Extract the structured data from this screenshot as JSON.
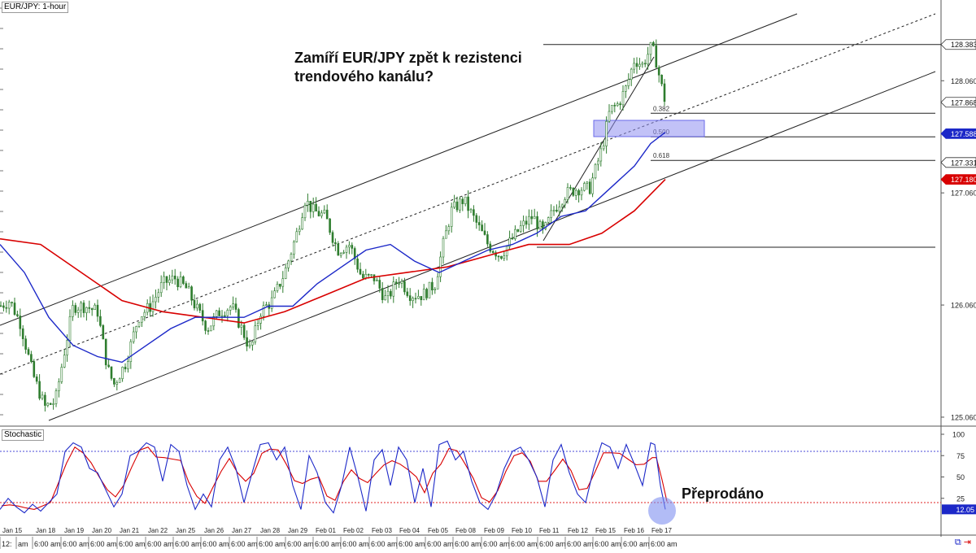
{
  "chart_info": {
    "symbol_label": "EUR/JPY: 1-hour",
    "headline": "Zamíří EUR/JPY zpět k rezistenci trendového kanálu?",
    "annotation": "Přeprodáno"
  },
  "colors": {
    "candle": "#2f7d2f",
    "ma_fast": "#1c28c8",
    "ma_slow": "#d80000",
    "channel": "#222222",
    "zone": "#8f8ff0",
    "stoch_k": "#1c28c8",
    "stoch_d": "#d80000",
    "overbought": "#4848d8",
    "oversold": "#e02020",
    "tag_blue": "#1c28c8",
    "tag_red": "#d80000",
    "circle": "#7f8ff0"
  },
  "chart_data": [
    {
      "type": "candlestick",
      "title": "EUR/JPY: 1-hour",
      "ylim": [
        124.98,
        128.78
      ],
      "y_ticks": [
        "128.383",
        "128.060",
        "127.868",
        "127.588",
        "127.331",
        "127.180",
        "127.060",
        "126.060",
        "125.060"
      ],
      "y_tick_values": [
        128.383,
        128.06,
        127.868,
        127.588,
        127.331,
        127.18,
        127.06,
        126.06,
        125.06
      ],
      "price_tags": [
        {
          "label": "128.383",
          "value": 128.383,
          "style": "outline"
        },
        {
          "label": "127.868",
          "value": 127.868,
          "style": "outline"
        },
        {
          "label": "127.588",
          "value": 127.588,
          "style": "blue"
        },
        {
          "label": "127.331",
          "value": 127.331,
          "style": "outline"
        },
        {
          "label": "127.180",
          "value": 127.18,
          "style": "red"
        }
      ],
      "x_date_labels": [
        "Jan 15",
        "Jan 18",
        "Jan 19",
        "Jan 20",
        "Jan 21",
        "Jan 22",
        "Jan 25",
        "Jan 26",
        "Jan 27",
        "Jan 28",
        "Jan 29",
        "Feb 01",
        "Feb 02",
        "Feb 03",
        "Feb 04",
        "Feb 05",
        "Feb 08",
        "Feb 09",
        "Feb 10",
        "Feb 11",
        "Feb 12",
        "Feb 15",
        "Feb 16",
        "Feb 17"
      ],
      "x_time_labels": [
        "12:",
        "am",
        "6:00 am",
        "6:00 am",
        "6:00 am",
        "6:00 am",
        "6:00 am",
        "6:00 am",
        "6:00 am",
        "6:00 am",
        "6:00 am",
        "6:00 am",
        "6:00 am",
        "6:00 am",
        "6:00 am",
        "6:00 am",
        "6:00 am",
        "6:00 am",
        "6:00 am",
        "6:00 am",
        "6:00 am",
        "6:00 am",
        "6:00 am",
        "6:00 am",
        "6:00 am"
      ],
      "close_path": [
        [
          0,
          126.05
        ],
        [
          12,
          126.1
        ],
        [
          25,
          125.9
        ],
        [
          40,
          125.45
        ],
        [
          55,
          125.15
        ],
        [
          68,
          125.2
        ],
        [
          78,
          125.6
        ],
        [
          90,
          126.05
        ],
        [
          105,
          126.05
        ],
        [
          120,
          126.0
        ],
        [
          132,
          125.5
        ],
        [
          140,
          125.35
        ],
        [
          155,
          125.55
        ],
        [
          170,
          125.95
        ],
        [
          185,
          126.05
        ],
        [
          200,
          126.25
        ],
        [
          215,
          126.3
        ],
        [
          230,
          126.2
        ],
        [
          240,
          126.05
        ],
        [
          255,
          125.85
        ],
        [
          270,
          126.0
        ],
        [
          285,
          126.05
        ],
        [
          300,
          125.8
        ],
        [
          308,
          125.65
        ],
        [
          320,
          126.0
        ],
        [
          335,
          126.1
        ],
        [
          350,
          126.35
        ],
        [
          365,
          126.7
        ],
        [
          375,
          127.0
        ],
        [
          385,
          126.9
        ],
        [
          400,
          126.85
        ],
        [
          415,
          126.55
        ],
        [
          430,
          126.6
        ],
        [
          445,
          126.3
        ],
        [
          460,
          126.3
        ],
        [
          475,
          126.1
        ],
        [
          490,
          126.3
        ],
        [
          505,
          126.15
        ],
        [
          520,
          126.15
        ],
        [
          535,
          126.25
        ],
        [
          545,
          126.6
        ],
        [
          555,
          126.9
        ],
        [
          570,
          127.0
        ],
        [
          585,
          126.8
        ],
        [
          600,
          126.6
        ],
        [
          615,
          126.5
        ],
        [
          625,
          126.6
        ],
        [
          640,
          126.75
        ],
        [
          655,
          126.85
        ],
        [
          668,
          126.7
        ],
        [
          680,
          126.9
        ],
        [
          695,
          127.05
        ],
        [
          710,
          127.1
        ],
        [
          725,
          127.1
        ],
        [
          740,
          127.45
        ],
        [
          750,
          127.8
        ],
        [
          760,
          127.85
        ],
        [
          770,
          128.0
        ],
        [
          780,
          128.25
        ],
        [
          790,
          128.2
        ],
        [
          800,
          128.35
        ],
        [
          805,
          128.3
        ],
        [
          812,
          128.05
        ],
        [
          818,
          127.87
        ]
      ],
      "ma_fast": [
        [
          0,
          126.6
        ],
        [
          30,
          126.35
        ],
        [
          60,
          125.95
        ],
        [
          90,
          125.7
        ],
        [
          120,
          125.6
        ],
        [
          150,
          125.55
        ],
        [
          180,
          125.7
        ],
        [
          210,
          125.85
        ],
        [
          240,
          125.95
        ],
        [
          270,
          125.95
        ],
        [
          300,
          125.95
        ],
        [
          330,
          126.05
        ],
        [
          360,
          126.05
        ],
        [
          390,
          126.25
        ],
        [
          420,
          126.4
        ],
        [
          450,
          126.55
        ],
        [
          480,
          126.6
        ],
        [
          510,
          126.45
        ],
        [
          540,
          126.35
        ],
        [
          570,
          126.45
        ],
        [
          600,
          126.55
        ],
        [
          630,
          126.6
        ],
        [
          660,
          126.7
        ],
        [
          690,
          126.85
        ],
        [
          720,
          126.9
        ],
        [
          750,
          127.1
        ],
        [
          780,
          127.3
        ],
        [
          800,
          127.5
        ],
        [
          818,
          127.6
        ]
      ],
      "ma_slow": [
        [
          0,
          126.65
        ],
        [
          50,
          126.6
        ],
        [
          100,
          126.35
        ],
        [
          150,
          126.1
        ],
        [
          200,
          126.0
        ],
        [
          250,
          125.95
        ],
        [
          300,
          125.9
        ],
        [
          350,
          126.0
        ],
        [
          400,
          126.15
        ],
        [
          450,
          126.3
        ],
        [
          500,
          126.35
        ],
        [
          550,
          126.4
        ],
        [
          600,
          126.5
        ],
        [
          650,
          126.6
        ],
        [
          700,
          126.6
        ],
        [
          740,
          126.7
        ],
        [
          780,
          126.9
        ],
        [
          818,
          127.18
        ]
      ],
      "fib_levels": [
        {
          "label": "0.382",
          "value": 127.77
        },
        {
          "label": "0.500",
          "value": 127.56
        },
        {
          "label": "0.618",
          "value": 127.35
        }
      ]
    },
    {
      "type": "line",
      "title": "Stochastic",
      "ylim": [
        0,
        100
      ],
      "y_ticks": [
        "100",
        "75",
        "50",
        "25"
      ],
      "y_tick_values": [
        100,
        75,
        50,
        25
      ],
      "overbought": 80,
      "oversold": 20,
      "last_value_label": "12.05",
      "last_value": 12.05,
      "series_k": [
        [
          0,
          12
        ],
        [
          10,
          25
        ],
        [
          20,
          15
        ],
        [
          30,
          8
        ],
        [
          40,
          18
        ],
        [
          50,
          10
        ],
        [
          60,
          20
        ],
        [
          70,
          30
        ],
        [
          80,
          80
        ],
        [
          90,
          90
        ],
        [
          100,
          85
        ],
        [
          110,
          60
        ],
        [
          120,
          55
        ],
        [
          130,
          35
        ],
        [
          140,
          15
        ],
        [
          150,
          30
        ],
        [
          160,
          75
        ],
        [
          170,
          80
        ],
        [
          180,
          90
        ],
        [
          190,
          85
        ],
        [
          200,
          45
        ],
        [
          210,
          88
        ],
        [
          220,
          80
        ],
        [
          230,
          40
        ],
        [
          240,
          12
        ],
        [
          250,
          30
        ],
        [
          260,
          15
        ],
        [
          270,
          70
        ],
        [
          280,
          85
        ],
        [
          290,
          60
        ],
        [
          300,
          20
        ],
        [
          310,
          55
        ],
        [
          320,
          88
        ],
        [
          330,
          90
        ],
        [
          340,
          70
        ],
        [
          350,
          85
        ],
        [
          360,
          40
        ],
        [
          370,
          12
        ],
        [
          380,
          75
        ],
        [
          390,
          55
        ],
        [
          400,
          20
        ],
        [
          410,
          8
        ],
        [
          420,
          40
        ],
        [
          430,
          85
        ],
        [
          440,
          50
        ],
        [
          450,
          10
        ],
        [
          460,
          70
        ],
        [
          470,
          82
        ],
        [
          480,
          40
        ],
        [
          490,
          85
        ],
        [
          500,
          70
        ],
        [
          510,
          20
        ],
        [
          520,
          60
        ],
        [
          530,
          15
        ],
        [
          540,
          88
        ],
        [
          550,
          92
        ],
        [
          560,
          70
        ],
        [
          570,
          80
        ],
        [
          580,
          45
        ],
        [
          590,
          20
        ],
        [
          600,
          12
        ],
        [
          610,
          30
        ],
        [
          620,
          60
        ],
        [
          630,
          80
        ],
        [
          640,
          85
        ],
        [
          650,
          70
        ],
        [
          660,
          50
        ],
        [
          670,
          15
        ],
        [
          680,
          70
        ],
        [
          690,
          88
        ],
        [
          700,
          55
        ],
        [
          710,
          30
        ],
        [
          720,
          20
        ],
        [
          730,
          60
        ],
        [
          740,
          90
        ],
        [
          750,
          85
        ],
        [
          760,
          60
        ],
        [
          770,
          88
        ],
        [
          780,
          65
        ],
        [
          790,
          40
        ],
        [
          800,
          90
        ],
        [
          805,
          88
        ],
        [
          812,
          40
        ],
        [
          818,
          12
        ]
      ]
    }
  ]
}
